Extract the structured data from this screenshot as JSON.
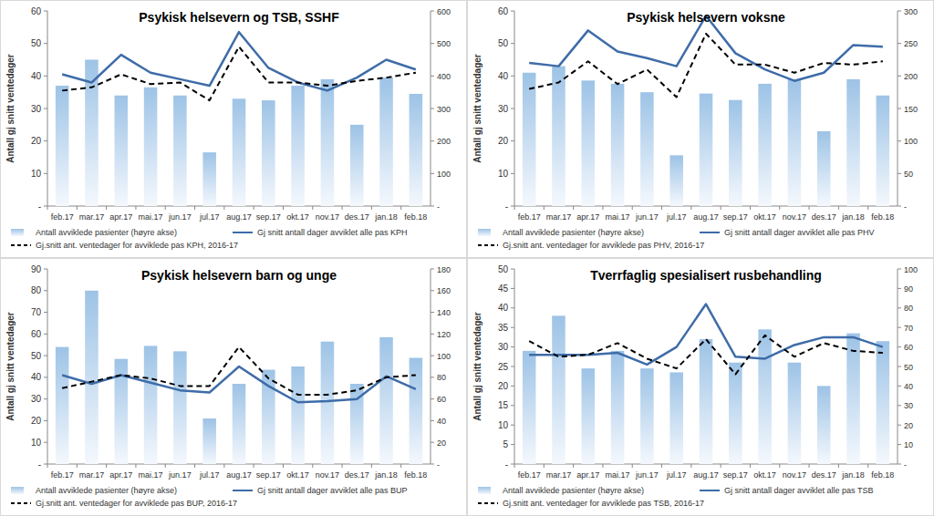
{
  "chart_data": [
    {
      "type": "bar",
      "title": "Psykisk helsevern og TSB, SSHF",
      "y_label": "Antall gj snitt ventedager",
      "categories": [
        "feb.17",
        "mar.17",
        "apr.17",
        "mai.17",
        "jun.17",
        "jul.17",
        "aug.17",
        "sep.17",
        "okt.17",
        "nov.17",
        "des.17",
        "jan.18",
        "feb.18"
      ],
      "series": [
        {
          "name": "Antall avviklede pasienter (høyre akse)",
          "type": "bar",
          "axis": "y2",
          "color": "#9dc3e6",
          "values": [
            370,
            450,
            340,
            365,
            340,
            165,
            330,
            325,
            370,
            390,
            250,
            395,
            345
          ]
        },
        {
          "name": "Gj snitt antall dager avviklet alle pas KPH",
          "type": "line",
          "color": "#3e6ca8",
          "line_style": "solid",
          "values": [
            40.5,
            38,
            46.5,
            41,
            39,
            37,
            53.5,
            42.5,
            38,
            35.5,
            39.5,
            45,
            42
          ]
        },
        {
          "name": "Gj.snitt ant. ventedager for avviklede pas KPH, 2016-17",
          "type": "line",
          "color": "#000000",
          "line_style": "dashed",
          "values": [
            35.5,
            36.5,
            40.5,
            37.5,
            38,
            32.5,
            49,
            38,
            38,
            37,
            38.5,
            39.5,
            41
          ]
        }
      ],
      "ylim": [
        0,
        60
      ],
      "yticks": [
        {
          "value": 0,
          "label": "-"
        },
        10,
        20,
        30,
        40,
        50,
        60
      ],
      "y2lim": [
        0,
        600
      ],
      "y2ticks": [
        {
          "value": 0,
          "label": "-"
        },
        100,
        200,
        300,
        400,
        500,
        600
      ],
      "grid": false,
      "legend": "bottom"
    },
    {
      "type": "bar",
      "title": "Psykisk helsevern voksne",
      "y_label": "Antall gj snitt ventedager",
      "categories": [
        "feb.17",
        "mar.17",
        "apr.17",
        "mai.17",
        "jun.17",
        "jul.17",
        "aug.17",
        "sep.17",
        "okt.17",
        "nov.17",
        "des.17",
        "jan.18",
        "feb.18"
      ],
      "series": [
        {
          "name": "Antall avviklede pasienter (høyre akse)",
          "type": "bar",
          "axis": "y2",
          "color": "#9dc3e6",
          "values": [
            205,
            215,
            193,
            188,
            175,
            78,
            173,
            163,
            188,
            195,
            115,
            195,
            170
          ]
        },
        {
          "name": "Gj snitt antall dager avviklet alle pas PHV",
          "type": "line",
          "color": "#3e6ca8",
          "line_style": "solid",
          "values": [
            44,
            43,
            54,
            47.5,
            45.5,
            43,
            58.5,
            47,
            42,
            38.5,
            41,
            49.5,
            49
          ]
        },
        {
          "name": "Gj.snitt ant. ventedager for avviklede pas PHV, 2016-17",
          "type": "line",
          "color": "#000000",
          "line_style": "dashed",
          "values": [
            36,
            38,
            44.5,
            37.5,
            42,
            33.5,
            53,
            43.5,
            43.5,
            41,
            44,
            43.5,
            44.5
          ]
        }
      ],
      "ylim": [
        0,
        60
      ],
      "yticks": [
        {
          "value": 0,
          "label": "-"
        },
        10,
        20,
        30,
        40,
        50,
        60
      ],
      "y2lim": [
        0,
        300
      ],
      "y2ticks": [
        {
          "value": 0,
          "label": "-"
        },
        50,
        100,
        150,
        200,
        250,
        300
      ],
      "grid": false,
      "legend": "bottom"
    },
    {
      "type": "bar",
      "title": "Psykisk helsevern barn og unge",
      "y_label": "Antall gj snitt ventedager",
      "categories": [
        "feb.17",
        "mar.17",
        "apr.17",
        "mai.17",
        "jun.17",
        "jul.17",
        "aug.17",
        "sep.17",
        "okt.17",
        "nov.17",
        "des.17",
        "jan.18",
        "feb.18"
      ],
      "series": [
        {
          "name": "Antall avviklede pasienter (høyre akse)",
          "type": "bar",
          "axis": "y2",
          "color": "#9dc3e6",
          "values": [
            108,
            160,
            97,
            109,
            104,
            42,
            74,
            87,
            90,
            113,
            74,
            117,
            98
          ]
        },
        {
          "name": "Gj snitt antall dager avviklet alle pas BUP",
          "type": "line",
          "color": "#3e6ca8",
          "line_style": "solid",
          "values": [
            41,
            37,
            41,
            37.5,
            34,
            33,
            45,
            36,
            28.5,
            29,
            30,
            40.5,
            34.5
          ]
        },
        {
          "name": "Gj.snitt ant. ventedager for avviklede pas BUP, 2016-17",
          "type": "line",
          "color": "#000000",
          "line_style": "dashed",
          "values": [
            35,
            38,
            41,
            39.5,
            36,
            36,
            54,
            39.5,
            32,
            32,
            34,
            40,
            41
          ]
        }
      ],
      "ylim": [
        0,
        90
      ],
      "yticks": [
        {
          "value": 0,
          "label": "-"
        },
        10,
        20,
        30,
        40,
        50,
        60,
        70,
        80,
        90
      ],
      "y2lim": [
        0,
        180
      ],
      "y2ticks": [
        {
          "value": 0,
          "label": "-"
        },
        20,
        40,
        60,
        80,
        100,
        120,
        140,
        160,
        180
      ],
      "grid": false,
      "legend": "bottom"
    },
    {
      "type": "bar",
      "title": "Tverrfaglig spesialisert rusbehandling",
      "y_label": "Antall gj snitt ventedager",
      "categories": [
        "feb.17",
        "mar.17",
        "apr.17",
        "mai.17",
        "jun.17",
        "jul.17",
        "aug.17",
        "sep.17",
        "okt.17",
        "nov.17",
        "des.17",
        "jan.18",
        "feb.18"
      ],
      "series": [
        {
          "name": "Antall avviklede pasienter (høyre akse)",
          "type": "bar",
          "axis": "y2",
          "color": "#9dc3e6",
          "values": [
            58,
            76,
            49,
            58,
            49,
            47,
            64,
            52,
            69,
            52,
            40,
            67,
            63
          ]
        },
        {
          "name": "Gj snitt antall dager avviklet alle pas TSB",
          "type": "line",
          "color": "#3e6ca8",
          "line_style": "solid",
          "values": [
            28,
            28,
            28,
            28.5,
            25.5,
            30,
            41,
            27.5,
            27,
            30.5,
            32.5,
            32.5,
            30
          ]
        },
        {
          "name": "Gj.snitt ant. ventedager for avviklede pas TSB, 2016-17",
          "type": "line",
          "color": "#000000",
          "line_style": "dashed",
          "values": [
            31.5,
            27.5,
            28,
            31,
            27,
            24.5,
            32,
            23,
            33,
            27.5,
            31,
            29,
            28.5
          ]
        }
      ],
      "ylim": [
        0,
        50
      ],
      "yticks": [
        {
          "value": 0,
          "label": "-"
        },
        5,
        10,
        15,
        20,
        25,
        30,
        35,
        40,
        45,
        50
      ],
      "y2lim": [
        0,
        100
      ],
      "y2ticks": [
        {
          "value": 0,
          "label": "-"
        },
        10,
        20,
        30,
        40,
        50,
        60,
        70,
        80,
        90,
        100
      ],
      "grid": false,
      "legend": "bottom"
    }
  ]
}
